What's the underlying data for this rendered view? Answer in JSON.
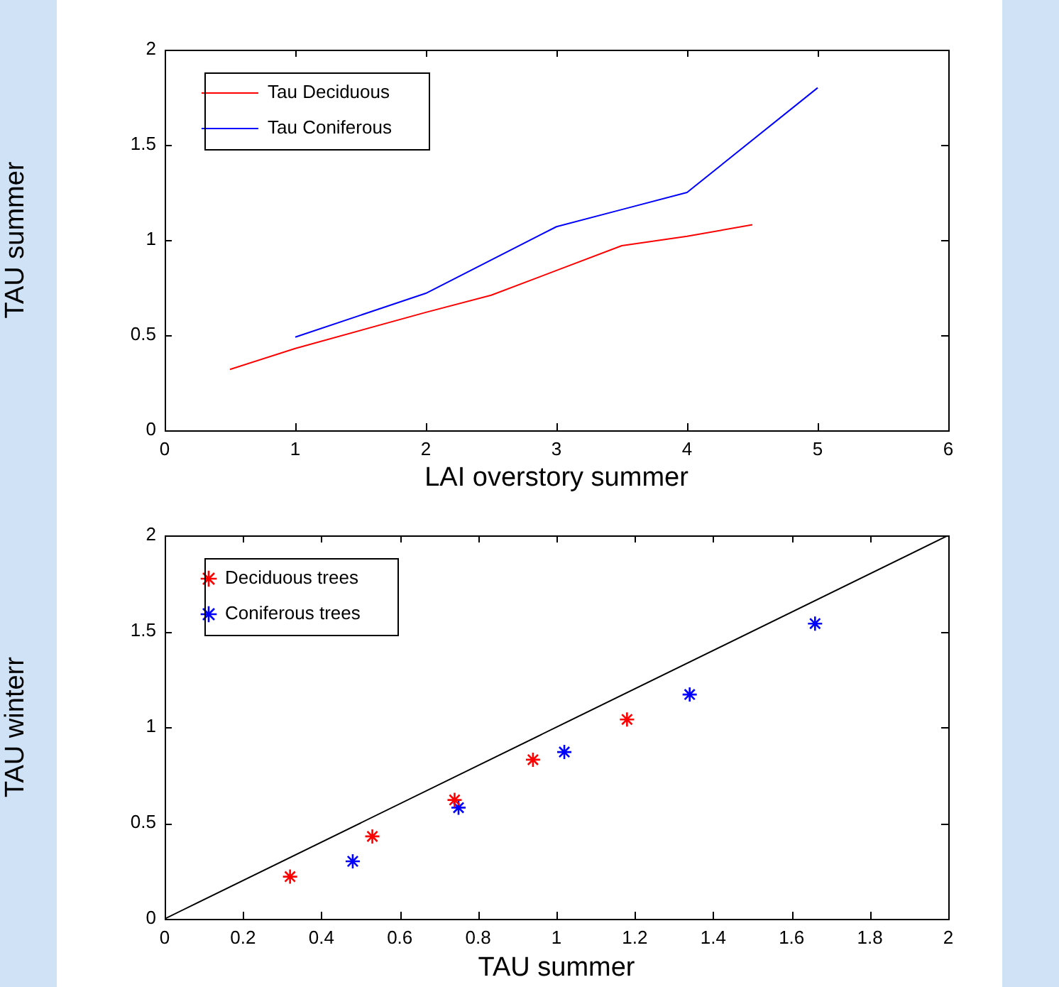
{
  "chart_data": [
    {
      "type": "line",
      "xlabel": "LAI overstory summer",
      "ylabel": "TAU summer",
      "xlim": [
        0,
        6
      ],
      "xticks": [
        0,
        1,
        2,
        3,
        4,
        5,
        6
      ],
      "ylim": [
        0,
        2
      ],
      "yticks": [
        0,
        0.5,
        1,
        1.5,
        2
      ],
      "legend": "top left",
      "series": [
        {
          "name": "Tau Deciduous",
          "color": "#ff0000",
          "x": [
            0.5,
            1,
            2,
            2.5,
            3,
            3.5,
            4,
            4.5
          ],
          "values": [
            0.32,
            0.43,
            0.62,
            0.71,
            0.84,
            0.97,
            1.02,
            1.08
          ]
        },
        {
          "name": "Tau Coniferous",
          "color": "#0000ff",
          "x": [
            1,
            2,
            3,
            3.5,
            4,
            5
          ],
          "values": [
            0.49,
            0.72,
            1.07,
            1.16,
            1.25,
            1.8
          ]
        }
      ]
    },
    {
      "type": "scatter",
      "xlabel": "TAU summer",
      "ylabel": "TAU winterr",
      "xlim": [
        0,
        2
      ],
      "xticks": [
        0,
        0.2,
        0.4,
        0.6,
        0.8,
        1,
        1.2,
        1.4,
        1.6,
        1.8,
        2
      ],
      "ylim": [
        0,
        2
      ],
      "yticks": [
        0,
        0.5,
        1,
        1.5,
        2
      ],
      "legend": "top left",
      "marker": "cross",
      "series": [
        {
          "name": "Deciduous trees",
          "color": "#ff0000",
          "x": [
            0.32,
            0.53,
            0.74,
            0.94,
            1.18
          ],
          "values": [
            0.22,
            0.43,
            0.62,
            0.83,
            1.04
          ]
        },
        {
          "name": "Coniferous trees",
          "color": "#0000ff",
          "x": [
            0.48,
            0.75,
            1.02,
            1.34,
            1.66
          ],
          "values": [
            0.3,
            0.58,
            0.87,
            1.17,
            1.54
          ]
        },
        {
          "type": "line",
          "marker": "none",
          "color": "#000000",
          "x": [
            0,
            2
          ],
          "values": [
            0,
            2
          ]
        }
      ]
    }
  ]
}
